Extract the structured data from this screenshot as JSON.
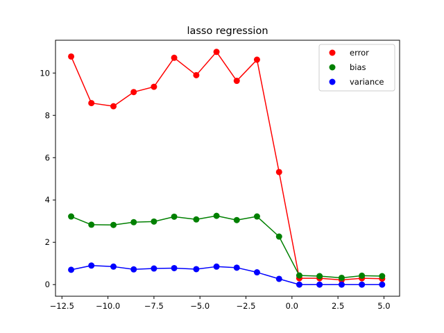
{
  "chart_data": {
    "type": "line",
    "title": "lasso regression",
    "xlabel": "",
    "ylabel": "",
    "xlim": [
      -12.85,
      5.85
    ],
    "ylim": [
      -0.55,
      11.55
    ],
    "xticks": [
      -12.5,
      -10.0,
      -7.5,
      -5.0,
      -2.5,
      0.0,
      2.5,
      5.0
    ],
    "xtick_labels": [
      "−12.5",
      "−10.0",
      "−7.5",
      "−5.0",
      "−2.5",
      "0.0",
      "2.5",
      "5.0"
    ],
    "yticks": [
      0,
      2,
      4,
      6,
      8,
      10
    ],
    "ytick_labels": [
      "0",
      "2",
      "4",
      "6",
      "8",
      "10"
    ],
    "grid": false,
    "legend_position": "top-right",
    "x": [
      -12.0,
      -10.9,
      -9.7,
      -8.6,
      -7.5,
      -6.4,
      -5.2,
      -4.1,
      -3.0,
      -1.9,
      -0.7,
      0.4,
      1.5,
      2.7,
      3.8,
      4.9
    ],
    "series": [
      {
        "name": "error",
        "color": "#ff0000",
        "values": [
          10.78,
          8.58,
          8.43,
          9.1,
          9.35,
          10.72,
          9.9,
          11.0,
          9.63,
          10.63,
          5.32,
          0.3,
          0.3,
          0.22,
          0.3,
          0.28
        ]
      },
      {
        "name": "bias",
        "color": "#008000",
        "values": [
          3.22,
          2.83,
          2.82,
          2.95,
          2.98,
          3.21,
          3.08,
          3.25,
          3.05,
          3.22,
          2.27,
          0.43,
          0.4,
          0.32,
          0.42,
          0.4
        ]
      },
      {
        "name": "variance",
        "color": "#0000ff",
        "values": [
          0.7,
          0.9,
          0.85,
          0.72,
          0.76,
          0.78,
          0.73,
          0.85,
          0.8,
          0.58,
          0.27,
          0.0,
          0.0,
          0.0,
          0.0,
          0.0
        ]
      }
    ]
  }
}
